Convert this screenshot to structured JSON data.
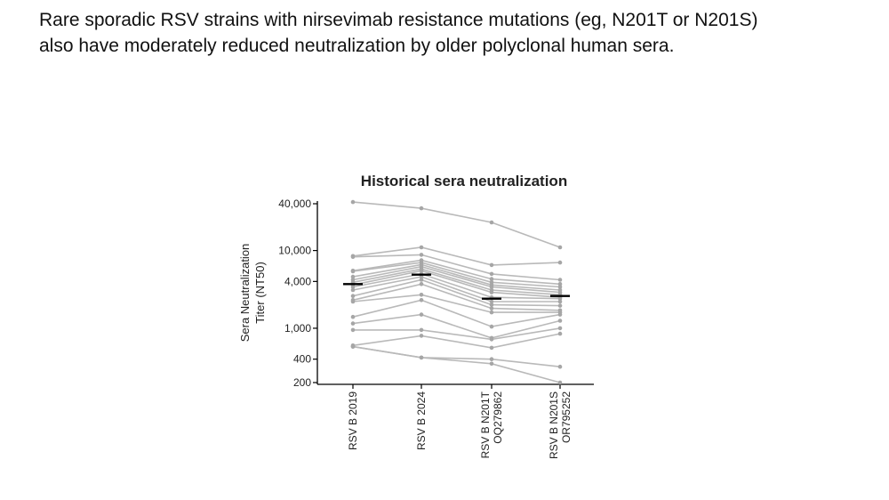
{
  "slide": {
    "line1": "Rare sporadic RSV strains with nirsevimab resistance mutations (eg, N201T or N201S)",
    "line2": "also have moderately reduced neutralization by older polyclonal human sera."
  },
  "chart_data": {
    "type": "line",
    "title": "Historical sera neutralization",
    "ylabel": [
      "Sera Neutralization",
      "Titer (NT50)"
    ],
    "yscale": "log",
    "ylim": [
      200,
      40000
    ],
    "yticks": [
      {
        "value": 40000,
        "label": "40,000"
      },
      {
        "value": 10000,
        "label": "10,000"
      },
      {
        "value": 4000,
        "label": "4,000"
      },
      {
        "value": 1000,
        "label": "1,000"
      },
      {
        "value": 400,
        "label": "400"
      },
      {
        "value": 200,
        "label": "200"
      }
    ],
    "categories": [
      [
        "RSV B 2019"
      ],
      [
        "RSV B 2024"
      ],
      [
        "RSV B N201T",
        "OQ279862"
      ],
      [
        "RSV B N201S",
        "OR795252"
      ]
    ],
    "series_color": "#b9b9b9",
    "median_color": "#000000",
    "series": [
      {
        "values": [
          42000,
          35000,
          23000,
          11000
        ]
      },
      {
        "values": [
          8500,
          11000,
          6500,
          7000
        ]
      },
      {
        "values": [
          8300,
          8800,
          5000,
          4200
        ]
      },
      {
        "values": [
          5500,
          7500,
          4300,
          3700
        ]
      },
      {
        "values": [
          5400,
          7000,
          3900,
          3400
        ]
      },
      {
        "values": [
          4600,
          6600,
          3600,
          3100
        ]
      },
      {
        "values": [
          4200,
          6200,
          3400,
          2900
        ]
      },
      {
        "values": [
          3900,
          5800,
          3100,
          2700
        ]
      },
      {
        "values": [
          3600,
          5500,
          2900,
          2500
        ]
      },
      {
        "values": [
          3400,
          5000,
          2500,
          2400
        ]
      },
      {
        "values": [
          3100,
          4600,
          2200,
          2200
        ]
      },
      {
        "values": [
          2600,
          4200,
          2000,
          1950
        ]
      },
      {
        "values": [
          2300,
          3700,
          1800,
          1700
        ]
      },
      {
        "values": [
          2200,
          2700,
          1600,
          1600
        ]
      },
      {
        "values": [
          1400,
          2300,
          1050,
          1500
        ]
      },
      {
        "values": [
          1150,
          1500,
          750,
          1250
        ]
      },
      {
        "values": [
          950,
          950,
          720,
          1000
        ]
      },
      {
        "values": [
          600,
          800,
          560,
          850
        ]
      },
      {
        "values": [
          580,
          420,
          400,
          320
        ]
      },
      {
        "values": [
          580,
          420,
          350,
          200
        ]
      }
    ],
    "medians": [
      3700,
      4900,
      2400,
      2600
    ]
  }
}
